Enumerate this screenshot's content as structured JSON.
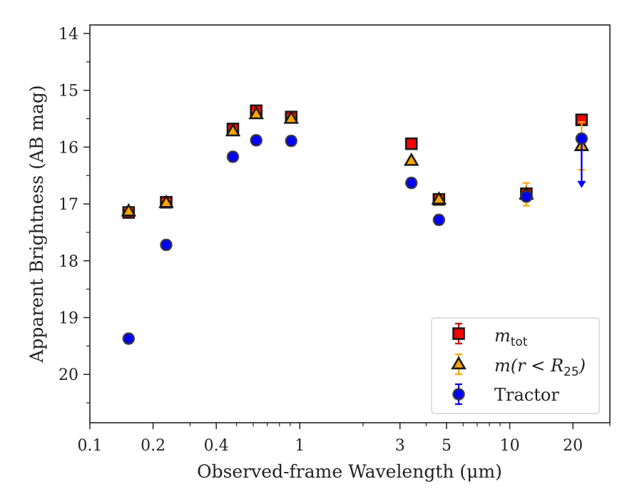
{
  "chart_data": {
    "type": "scatter",
    "title": "",
    "xlabel": "Observed-frame Wavelength (μm)",
    "ylabel": "Apparent Brightness (AB mag)",
    "xscale": "log",
    "xlim": [
      0.1,
      30
    ],
    "ylim": [
      20.85,
      13.85
    ],
    "y_inverted": true,
    "grid": false,
    "legend_position": "lower-right",
    "x_tick_labels": [
      "0.1",
      "0.2",
      "0.4",
      "1",
      "3",
      "5",
      "10",
      "20"
    ],
    "x_tick_values": [
      0.1,
      0.2,
      0.4,
      1,
      3,
      5,
      10,
      20
    ],
    "y_tick_labels": [
      "14",
      "15",
      "16",
      "17",
      "18",
      "19",
      "20"
    ],
    "y_tick_values": [
      14,
      15,
      16,
      17,
      18,
      19,
      20
    ],
    "series": [
      {
        "name": "m_tot",
        "legend_math": "m",
        "legend_sub": "tot",
        "marker": "square",
        "color": "#ff0000",
        "errcolor": "#cc0000",
        "points": [
          {
            "x": 0.153,
            "y": 17.15,
            "err": 0.06
          },
          {
            "x": 0.231,
            "y": 16.97,
            "err": 0.05
          },
          {
            "x": 0.48,
            "y": 15.68,
            "err": 0.05
          },
          {
            "x": 0.62,
            "y": 15.36,
            "err": 0.06
          },
          {
            "x": 0.91,
            "y": 15.47,
            "err": 0.05
          },
          {
            "x": 3.4,
            "y": 15.94,
            "err": 0.03
          },
          {
            "x": 4.6,
            "y": 16.92,
            "err": 0.05
          },
          {
            "x": 12.0,
            "y": 16.82,
            "err": 0.05
          },
          {
            "x": 22.0,
            "y": 15.52,
            "err": 0.03
          }
        ]
      },
      {
        "name": "m(r < R25)",
        "legend_math": "m(r < R",
        "legend_sub": "25",
        "legend_close": ")",
        "marker": "triangle",
        "color": "#ffa500",
        "errcolor": "#ffa500",
        "points": [
          {
            "x": 0.153,
            "y": 17.13,
            "err": 0.05
          },
          {
            "x": 0.231,
            "y": 16.98,
            "err": 0.05
          },
          {
            "x": 0.48,
            "y": 15.72,
            "err": 0.05
          },
          {
            "x": 0.62,
            "y": 15.42,
            "err": 0.05
          },
          {
            "x": 0.91,
            "y": 15.5,
            "err": 0.05
          },
          {
            "x": 3.4,
            "y": 16.24,
            "err": 0.04
          },
          {
            "x": 4.6,
            "y": 16.92,
            "err": 0.05
          },
          {
            "x": 12.0,
            "y": 16.83,
            "err": 0.2
          },
          {
            "x": 22.0,
            "y": 15.98,
            "err": 0.42
          }
        ]
      },
      {
        "name": "Tractor",
        "marker": "circle",
        "color": "#0000ff",
        "errcolor": "#0000ff",
        "points": [
          {
            "x": 0.153,
            "y": 19.37,
            "err": 0.08
          },
          {
            "x": 0.231,
            "y": 17.72,
            "err": 0.08
          },
          {
            "x": 0.48,
            "y": 16.17,
            "err": 0.08
          },
          {
            "x": 0.62,
            "y": 15.88,
            "err": 0.08
          },
          {
            "x": 0.91,
            "y": 15.89,
            "err": 0.08
          },
          {
            "x": 3.4,
            "y": 16.63,
            "err": 0.08
          },
          {
            "x": 4.6,
            "y": 17.28,
            "err": 0.08
          },
          {
            "x": 12.0,
            "y": 16.87,
            "err": 0.08
          },
          {
            "x": 22.0,
            "y": 15.85,
            "upper_limit_to": 16.72
          }
        ]
      }
    ]
  }
}
